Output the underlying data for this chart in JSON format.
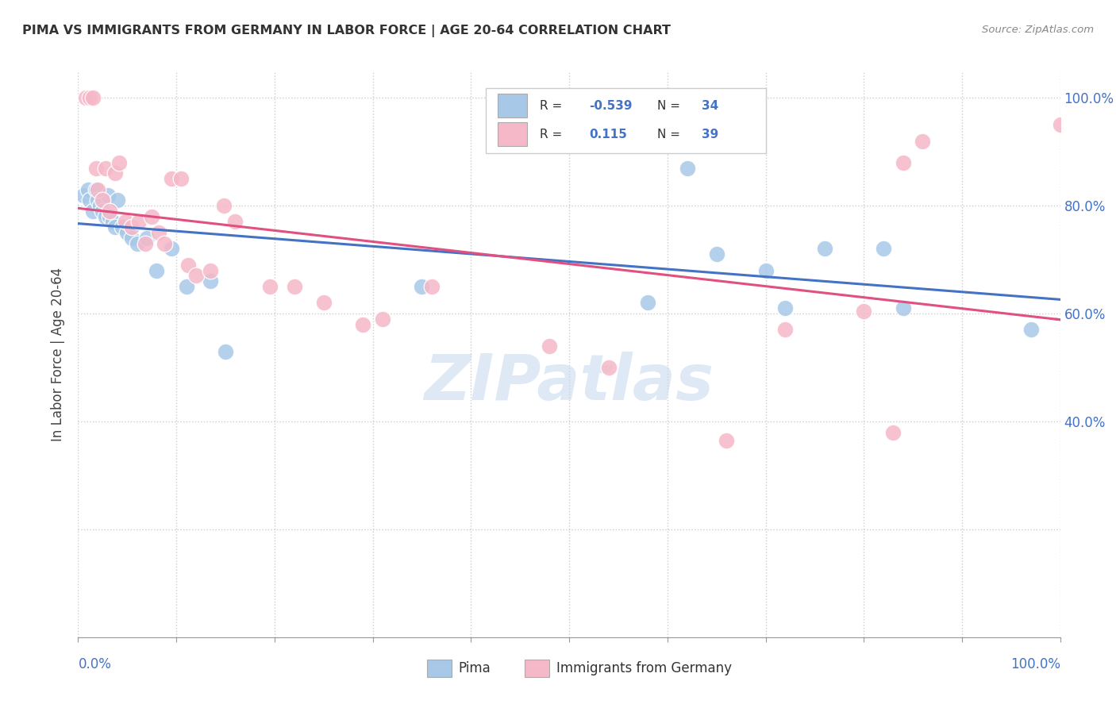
{
  "title": "PIMA VS IMMIGRANTS FROM GERMANY IN LABOR FORCE | AGE 20-64 CORRELATION CHART",
  "source": "Source: ZipAtlas.com",
  "ylabel": "In Labor Force | Age 20-64",
  "legend_label1": "Pima",
  "legend_label2": "Immigrants from Germany",
  "r1": -0.539,
  "n1": 34,
  "r2": 0.115,
  "n2": 39,
  "color_blue": "#a8c8e8",
  "color_pink": "#f5b8c8",
  "color_blue_line": "#4472c4",
  "color_pink_line": "#e05080",
  "xlim": [
    0.0,
    1.0
  ],
  "ylim": [
    0.0,
    1.05
  ],
  "blue_x": [
    0.005,
    0.01,
    0.012,
    0.015,
    0.018,
    0.02,
    0.022,
    0.025,
    0.028,
    0.03,
    0.032,
    0.035,
    0.038,
    0.04,
    0.045,
    0.05,
    0.055,
    0.06,
    0.07,
    0.08,
    0.095,
    0.11,
    0.135,
    0.15,
    0.35,
    0.58,
    0.62,
    0.65,
    0.7,
    0.72,
    0.76,
    0.82,
    0.84,
    0.97
  ],
  "blue_y": [
    0.82,
    0.83,
    0.81,
    0.79,
    0.83,
    0.81,
    0.8,
    0.79,
    0.78,
    0.82,
    0.78,
    0.77,
    0.76,
    0.81,
    0.76,
    0.75,
    0.74,
    0.73,
    0.74,
    0.68,
    0.72,
    0.65,
    0.66,
    0.53,
    0.65,
    0.62,
    0.87,
    0.71,
    0.68,
    0.61,
    0.72,
    0.72,
    0.61,
    0.57
  ],
  "pink_x": [
    0.008,
    0.012,
    0.015,
    0.018,
    0.02,
    0.025,
    0.028,
    0.032,
    0.038,
    0.042,
    0.048,
    0.055,
    0.062,
    0.068,
    0.075,
    0.082,
    0.088,
    0.095,
    0.105,
    0.112,
    0.12,
    0.135,
    0.148,
    0.16,
    0.195,
    0.22,
    0.25,
    0.29,
    0.31,
    0.36,
    0.48,
    0.54,
    0.66,
    0.72,
    0.8,
    0.83,
    0.84,
    0.86,
    1.0
  ],
  "pink_y": [
    1.0,
    1.0,
    1.0,
    0.87,
    0.83,
    0.81,
    0.87,
    0.79,
    0.86,
    0.88,
    0.77,
    0.76,
    0.77,
    0.73,
    0.78,
    0.75,
    0.73,
    0.85,
    0.85,
    0.69,
    0.67,
    0.68,
    0.8,
    0.77,
    0.65,
    0.65,
    0.62,
    0.58,
    0.59,
    0.65,
    0.54,
    0.5,
    0.365,
    0.57,
    0.605,
    0.38,
    0.88,
    0.92,
    0.95
  ],
  "yticks": [
    0.0,
    0.2,
    0.4,
    0.6,
    0.8,
    1.0
  ],
  "xtick_positions": [
    0.0,
    0.1,
    0.2,
    0.3,
    0.4,
    0.5,
    0.6,
    0.7,
    0.8,
    0.9,
    1.0
  ],
  "watermark": "ZIPatlas"
}
